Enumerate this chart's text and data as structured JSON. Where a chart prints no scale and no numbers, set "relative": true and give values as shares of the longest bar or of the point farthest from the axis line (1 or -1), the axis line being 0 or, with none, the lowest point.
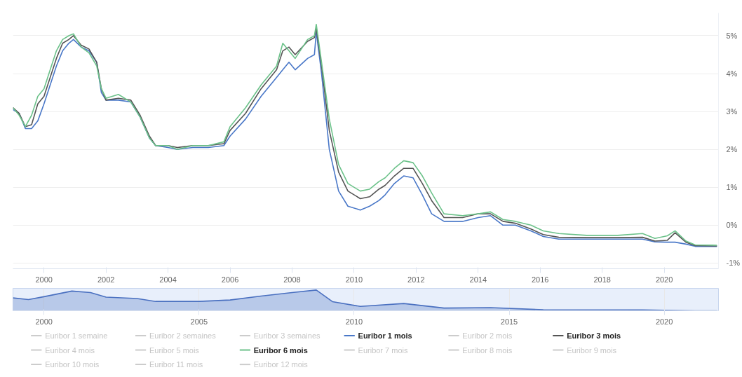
{
  "chart_data": [
    {
      "type": "line",
      "xlim": [
        1999.0,
        2021.75
      ],
      "ylim": [
        -1.15,
        5.6
      ],
      "xticks": [
        2000,
        2002,
        2004,
        2006,
        2008,
        2010,
        2012,
        2014,
        2016,
        2018,
        2020
      ],
      "yticks": [
        {
          "value": -1,
          "label": "-1%"
        },
        {
          "value": 0,
          "label": "0%"
        },
        {
          "value": 1,
          "label": "1%"
        },
        {
          "value": 2,
          "label": "2%"
        },
        {
          "value": 3,
          "label": "3%"
        },
        {
          "value": 4,
          "label": "4%"
        },
        {
          "value": 5,
          "label": "5%"
        }
      ],
      "grid": "y",
      "legend": "bottom",
      "line_style": "solid",
      "marker": "none",
      "x": [
        1999.0,
        1999.2,
        1999.4,
        1999.6,
        1999.8,
        2000.0,
        2000.2,
        2000.4,
        2000.6,
        2000.8,
        2000.95,
        2001.2,
        2001.45,
        2001.7,
        2001.85,
        2002.0,
        2002.4,
        2002.8,
        2003.1,
        2003.4,
        2003.6,
        2004.0,
        2004.3,
        2004.8,
        2005.3,
        2005.8,
        2006.0,
        2006.5,
        2007.0,
        2007.5,
        2007.7,
        2007.9,
        2008.1,
        2008.5,
        2008.72,
        2008.78,
        2008.95,
        2009.2,
        2009.5,
        2009.8,
        2010.2,
        2010.5,
        2010.8,
        2011.0,
        2011.3,
        2011.6,
        2011.9,
        2012.2,
        2012.5,
        2012.9,
        2013.5,
        2014.0,
        2014.4,
        2014.8,
        2015.2,
        2015.7,
        2016.1,
        2016.6,
        2017.5,
        2018.5,
        2019.3,
        2019.7,
        2020.1,
        2020.35,
        2020.7,
        2021.0,
        2021.7
      ],
      "series": [
        {
          "name": "Euribor 1 semaine",
          "color": "#cccccc",
          "values": [
            null,
            null,
            null,
            null,
            null,
            null,
            null,
            null,
            null,
            null,
            null,
            null,
            null,
            null,
            null,
            null,
            null,
            null,
            null,
            null,
            null,
            null,
            null,
            null,
            null,
            null,
            null,
            null,
            null,
            null,
            null,
            null,
            null,
            null,
            null,
            null,
            null,
            null,
            null,
            null,
            null,
            null,
            null,
            null,
            null,
            null,
            null,
            null,
            null,
            null,
            null,
            null,
            null,
            null,
            null,
            null,
            null,
            null,
            null,
            null,
            null,
            null,
            null,
            null,
            null,
            null,
            null
          ]
        },
        {
          "name": "Euribor 2 semaines",
          "color": "#cccccc",
          "values": [
            null,
            null,
            null,
            null,
            null,
            null,
            null,
            null,
            null,
            null,
            null,
            null,
            null,
            null,
            null,
            null,
            null,
            null,
            null,
            null,
            null,
            null,
            null,
            null,
            null,
            null,
            null,
            null,
            null,
            null,
            null,
            null,
            null,
            null,
            null,
            null,
            null,
            null,
            null,
            null,
            null,
            null,
            null,
            null,
            null,
            null,
            null,
            null,
            null,
            null,
            null,
            null,
            null,
            null,
            null,
            null,
            null,
            null,
            null,
            null,
            null,
            null,
            null,
            null,
            null,
            null,
            null
          ]
        },
        {
          "name": "Euribor 3 semaines",
          "color": "#cccccc",
          "values": [
            null,
            null,
            null,
            null,
            null,
            null,
            null,
            null,
            null,
            null,
            null,
            null,
            null,
            null,
            null,
            null,
            null,
            null,
            null,
            null,
            null,
            null,
            null,
            null,
            null,
            null,
            null,
            null,
            null,
            null,
            null,
            null,
            null,
            null,
            null,
            null,
            null,
            null,
            null,
            null,
            null,
            null,
            null,
            null,
            null,
            null,
            null,
            null,
            null,
            null,
            null,
            null,
            null,
            null,
            null,
            null,
            null,
            null,
            null,
            null,
            null,
            null,
            null,
            null,
            null,
            null,
            null
          ]
        },
        {
          "name": "Euribor 1 mois",
          "color": "#4a78c8",
          "values": [
            3.05,
            2.95,
            2.55,
            2.55,
            2.75,
            3.2,
            3.7,
            4.2,
            4.6,
            4.8,
            4.9,
            4.7,
            4.6,
            4.3,
            3.5,
            3.3,
            3.3,
            3.25,
            2.85,
            2.3,
            2.1,
            2.05,
            2.0,
            2.05,
            2.05,
            2.1,
            2.35,
            2.8,
            3.4,
            3.9,
            4.1,
            4.3,
            4.1,
            4.4,
            4.5,
            5.1,
            4.0,
            2.0,
            0.9,
            0.5,
            0.4,
            0.5,
            0.65,
            0.8,
            1.1,
            1.3,
            1.25,
            0.8,
            0.3,
            0.1,
            0.1,
            0.2,
            0.25,
            0.0,
            0.0,
            -0.15,
            -0.3,
            -0.37,
            -0.37,
            -0.37,
            -0.37,
            -0.44,
            -0.45,
            -0.45,
            -0.5,
            -0.56,
            -0.56
          ]
        },
        {
          "name": "Euribor 2 mois",
          "color": "#cccccc",
          "values": [
            null,
            null,
            null,
            null,
            null,
            null,
            null,
            null,
            null,
            null,
            null,
            null,
            null,
            null,
            null,
            null,
            null,
            null,
            null,
            null,
            null,
            null,
            null,
            null,
            null,
            null,
            null,
            null,
            null,
            null,
            null,
            null,
            null,
            null,
            null,
            null,
            null,
            null,
            null,
            null,
            null,
            null,
            null,
            null,
            null,
            null,
            null,
            null,
            null,
            null,
            null,
            null,
            null,
            null,
            null,
            null,
            null,
            null,
            null,
            null,
            null,
            null,
            null,
            null,
            null,
            null,
            null
          ]
        },
        {
          "name": "Euribor 3 mois",
          "color": "#555555",
          "values": [
            3.1,
            2.95,
            2.6,
            2.65,
            3.2,
            3.4,
            3.9,
            4.4,
            4.8,
            4.9,
            5.0,
            4.75,
            4.65,
            4.3,
            3.6,
            3.3,
            3.35,
            3.3,
            2.9,
            2.35,
            2.1,
            2.1,
            2.05,
            2.1,
            2.1,
            2.15,
            2.5,
            2.95,
            3.6,
            4.1,
            4.6,
            4.7,
            4.5,
            4.85,
            4.95,
            5.2,
            4.2,
            2.5,
            1.4,
            0.9,
            0.7,
            0.75,
            0.95,
            1.05,
            1.3,
            1.5,
            1.5,
            1.1,
            0.65,
            0.2,
            0.2,
            0.3,
            0.3,
            0.1,
            0.05,
            -0.1,
            -0.25,
            -0.32,
            -0.33,
            -0.33,
            -0.32,
            -0.42,
            -0.4,
            -0.2,
            -0.45,
            -0.54,
            -0.55
          ]
        },
        {
          "name": "Euribor 4 mois",
          "color": "#cccccc",
          "values": [
            null,
            null,
            null,
            null,
            null,
            null,
            null,
            null,
            null,
            null,
            null,
            null,
            null,
            null,
            null,
            null,
            null,
            null,
            null,
            null,
            null,
            null,
            null,
            null,
            null,
            null,
            null,
            null,
            null,
            null,
            null,
            null,
            null,
            null,
            null,
            null,
            null,
            null,
            null,
            null,
            null,
            null,
            null,
            null,
            null,
            null,
            null,
            null,
            null,
            null,
            null,
            null,
            null,
            null,
            null,
            null,
            null,
            null,
            null,
            null,
            null,
            null,
            null,
            null,
            null,
            null,
            null
          ]
        },
        {
          "name": "Euribor 5 mois",
          "color": "#cccccc",
          "values": [
            null,
            null,
            null,
            null,
            null,
            null,
            null,
            null,
            null,
            null,
            null,
            null,
            null,
            null,
            null,
            null,
            null,
            null,
            null,
            null,
            null,
            null,
            null,
            null,
            null,
            null,
            null,
            null,
            null,
            null,
            null,
            null,
            null,
            null,
            null,
            null,
            null,
            null,
            null,
            null,
            null,
            null,
            null,
            null,
            null,
            null,
            null,
            null,
            null,
            null,
            null,
            null,
            null,
            null,
            null,
            null,
            null,
            null,
            null,
            null,
            null,
            null,
            null,
            null,
            null,
            null,
            null
          ]
        },
        {
          "name": "Euribor 6 mois",
          "color": "#6cc28a",
          "values": [
            3.1,
            2.9,
            2.6,
            2.9,
            3.4,
            3.6,
            4.1,
            4.6,
            4.9,
            5.0,
            5.05,
            4.7,
            4.55,
            4.2,
            3.6,
            3.35,
            3.45,
            3.25,
            2.85,
            2.3,
            2.1,
            2.1,
            2.0,
            2.1,
            2.1,
            2.2,
            2.6,
            3.1,
            3.7,
            4.2,
            4.8,
            4.6,
            4.4,
            4.9,
            5.0,
            5.3,
            4.3,
            2.8,
            1.6,
            1.1,
            0.9,
            0.95,
            1.15,
            1.25,
            1.5,
            1.7,
            1.65,
            1.3,
            0.85,
            0.3,
            0.25,
            0.3,
            0.35,
            0.15,
            0.1,
            0.0,
            -0.15,
            -0.22,
            -0.27,
            -0.27,
            -0.22,
            -0.35,
            -0.28,
            -0.15,
            -0.42,
            -0.52,
            -0.53
          ]
        },
        {
          "name": "Euribor 7 mois",
          "color": "#cccccc",
          "values": [
            null,
            null,
            null,
            null,
            null,
            null,
            null,
            null,
            null,
            null,
            null,
            null,
            null,
            null,
            null,
            null,
            null,
            null,
            null,
            null,
            null,
            null,
            null,
            null,
            null,
            null,
            null,
            null,
            null,
            null,
            null,
            null,
            null,
            null,
            null,
            null,
            null,
            null,
            null,
            null,
            null,
            null,
            null,
            null,
            null,
            null,
            null,
            null,
            null,
            null,
            null,
            null,
            null,
            null,
            null,
            null,
            null,
            null,
            null,
            null,
            null,
            null,
            null,
            null,
            null,
            null,
            null
          ]
        },
        {
          "name": "Euribor 8 mois",
          "color": "#cccccc",
          "values": [
            null,
            null,
            null,
            null,
            null,
            null,
            null,
            null,
            null,
            null,
            null,
            null,
            null,
            null,
            null,
            null,
            null,
            null,
            null,
            null,
            null,
            null,
            null,
            null,
            null,
            null,
            null,
            null,
            null,
            null,
            null,
            null,
            null,
            null,
            null,
            null,
            null,
            null,
            null,
            null,
            null,
            null,
            null,
            null,
            null,
            null,
            null,
            null,
            null,
            null,
            null,
            null,
            null,
            null,
            null,
            null,
            null,
            null,
            null,
            null,
            null,
            null,
            null,
            null,
            null,
            null,
            null
          ]
        },
        {
          "name": "Euribor 9 mois",
          "color": "#cccccc",
          "values": [
            null,
            null,
            null,
            null,
            null,
            null,
            null,
            null,
            null,
            null,
            null,
            null,
            null,
            null,
            null,
            null,
            null,
            null,
            null,
            null,
            null,
            null,
            null,
            null,
            null,
            null,
            null,
            null,
            null,
            null,
            null,
            null,
            null,
            null,
            null,
            null,
            null,
            null,
            null,
            null,
            null,
            null,
            null,
            null,
            null,
            null,
            null,
            null,
            null,
            null,
            null,
            null,
            null,
            null,
            null,
            null,
            null,
            null,
            null,
            null,
            null,
            null,
            null,
            null,
            null,
            null,
            null
          ]
        },
        {
          "name": "Euribor 10 mois",
          "color": "#cccccc",
          "values": [
            null,
            null,
            null,
            null,
            null,
            null,
            null,
            null,
            null,
            null,
            null,
            null,
            null,
            null,
            null,
            null,
            null,
            null,
            null,
            null,
            null,
            null,
            null,
            null,
            null,
            null,
            null,
            null,
            null,
            null,
            null,
            null,
            null,
            null,
            null,
            null,
            null,
            null,
            null,
            null,
            null,
            null,
            null,
            null,
            null,
            null,
            null,
            null,
            null,
            null,
            null,
            null,
            null,
            null,
            null,
            null,
            null,
            null,
            null,
            null,
            null,
            null,
            null,
            null,
            null,
            null,
            null
          ]
        },
        {
          "name": "Euribor 11 mois",
          "color": "#cccccc",
          "values": [
            null,
            null,
            null,
            null,
            null,
            null,
            null,
            null,
            null,
            null,
            null,
            null,
            null,
            null,
            null,
            null,
            null,
            null,
            null,
            null,
            null,
            null,
            null,
            null,
            null,
            null,
            null,
            null,
            null,
            null,
            null,
            null,
            null,
            null,
            null,
            null,
            null,
            null,
            null,
            null,
            null,
            null,
            null,
            null,
            null,
            null,
            null,
            null,
            null,
            null,
            null,
            null,
            null,
            null,
            null,
            null,
            null,
            null,
            null,
            null,
            null,
            null,
            null,
            null,
            null,
            null,
            null
          ]
        },
        {
          "name": "Euribor 12 mois",
          "color": "#cccccc",
          "values": [
            null,
            null,
            null,
            null,
            null,
            null,
            null,
            null,
            null,
            null,
            null,
            null,
            null,
            null,
            null,
            null,
            null,
            null,
            null,
            null,
            null,
            null,
            null,
            null,
            null,
            null,
            null,
            null,
            null,
            null,
            null,
            null,
            null,
            null,
            null,
            null,
            null,
            null,
            null,
            null,
            null,
            null,
            null,
            null,
            null,
            null,
            null,
            null,
            null,
            null,
            null,
            null,
            null,
            null,
            null,
            null,
            null,
            null,
            null,
            null,
            null,
            null,
            null,
            null,
            null,
            null,
            null
          ]
        }
      ]
    },
    {
      "type": "area",
      "relative": true,
      "xlim": [
        1999.0,
        2021.75
      ],
      "xticks": [
        2000,
        2005,
        2010,
        2015,
        2020
      ],
      "tick_labels": "x",
      "grid": "x",
      "x": [
        1999,
        1999.5,
        2000,
        2000.9,
        2001.5,
        2002,
        2003,
        2003.6,
        2005,
        2006,
        2007,
        2008,
        2008.78,
        2009.3,
        2010.2,
        2011.6,
        2012.9,
        2014.4,
        2016.1,
        2019.3,
        2021,
        2021.7
      ],
      "series": [
        {
          "color": "#4a70c0",
          "values": [
            0.62,
            0.54,
            0.68,
            0.95,
            0.88,
            0.66,
            0.59,
            0.45,
            0.45,
            0.52,
            0.71,
            0.88,
            1.0,
            0.44,
            0.21,
            0.35,
            0.13,
            0.15,
            0.05,
            0.04,
            0.0,
            0.0
          ]
        }
      ]
    }
  ]
}
